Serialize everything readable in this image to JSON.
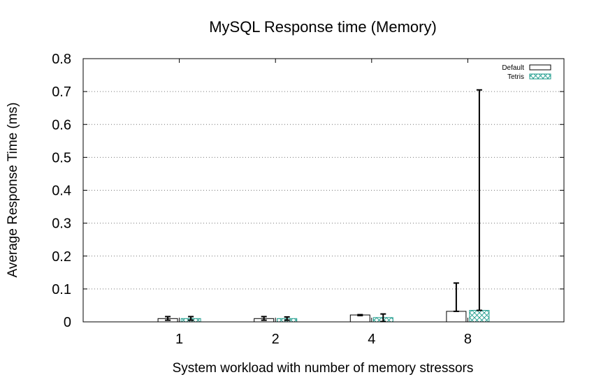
{
  "chart_data": {
    "type": "bar",
    "title": "MySQL Response time (Memory)",
    "xlabel": "System workload with number of memory stressors",
    "ylabel": "Average Response Time (ms)",
    "categories": [
      "1",
      "2",
      "4",
      "8"
    ],
    "ylim": [
      0,
      0.8
    ],
    "yticks": [
      "0",
      "0.1",
      "0.2",
      "0.3",
      "0.4",
      "0.5",
      "0.6",
      "0.7",
      "0.8"
    ],
    "grid": true,
    "legend_position": "top-right",
    "series": [
      {
        "name": "Default",
        "pattern": "none",
        "color": "#000000",
        "values": [
          0.01,
          0.01,
          0.021,
          0.032
        ],
        "error_low": [
          0.005,
          0.005,
          0.019,
          0.032
        ],
        "error_high": [
          0.016,
          0.016,
          0.022,
          0.118
        ]
      },
      {
        "name": "Tetris",
        "pattern": "crosshatch",
        "color": "#1a9a8a",
        "values": [
          0.01,
          0.01,
          0.013,
          0.035
        ],
        "error_low": [
          0.005,
          0.005,
          0.001,
          0.035
        ],
        "error_high": [
          0.016,
          0.015,
          0.024,
          0.705
        ]
      }
    ]
  }
}
